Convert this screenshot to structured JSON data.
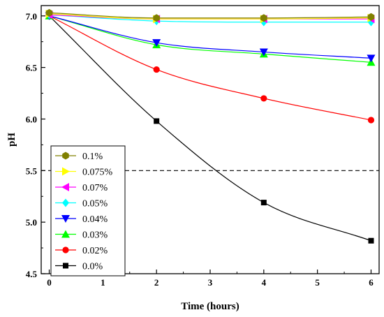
{
  "chart_data": {
    "type": "line",
    "title": "",
    "xlabel": "Time (hours)",
    "ylabel": "pH",
    "xlim": [
      -0.15,
      6.15
    ],
    "ylim": [
      4.5,
      7.1
    ],
    "xticks": [
      0,
      1,
      2,
      3,
      4,
      5,
      6
    ],
    "yticks": [
      4.5,
      5.0,
      5.5,
      6.0,
      6.5,
      7.0
    ],
    "xtick_labels": [
      "0",
      "1",
      "2",
      "3",
      "4",
      "5",
      "6"
    ],
    "ytick_labels": [
      "4.5",
      "5.0",
      "5.5",
      "6.0",
      "6.5",
      "7.0"
    ],
    "grid": false,
    "legend_position": "bottom-left",
    "reference_line": {
      "y": 5.5,
      "style": "dashed",
      "color": "#000000"
    },
    "x": [
      0,
      2,
      4,
      6
    ],
    "series": [
      {
        "name": "0.1%",
        "marker": "hexagon",
        "color": "#808000",
        "values": [
          7.03,
          6.98,
          6.98,
          6.99
        ]
      },
      {
        "name": "0.075%",
        "marker": "triangle-right",
        "color": "#ffff00",
        "values": [
          7.02,
          6.97,
          6.97,
          6.98
        ]
      },
      {
        "name": "0.07%",
        "marker": "triangle-left",
        "color": "#ff00ff",
        "values": [
          7.01,
          6.97,
          6.97,
          6.97
        ]
      },
      {
        "name": "0.05%",
        "marker": "diamond",
        "color": "#00ffff",
        "values": [
          7.01,
          6.95,
          6.94,
          6.94
        ]
      },
      {
        "name": "0.04%",
        "marker": "triangle-down",
        "color": "#0000ff",
        "values": [
          7.0,
          6.74,
          6.65,
          6.59
        ]
      },
      {
        "name": "0.03%",
        "marker": "triangle-up",
        "color": "#00ff00",
        "values": [
          7.0,
          6.72,
          6.63,
          6.55
        ]
      },
      {
        "name": "0.02%",
        "marker": "circle",
        "color": "#ff0000",
        "values": [
          7.0,
          6.48,
          6.2,
          5.99
        ]
      },
      {
        "name": "0.0%",
        "marker": "square",
        "color": "#000000",
        "values": [
          7.0,
          5.98,
          5.19,
          4.82
        ]
      }
    ]
  }
}
